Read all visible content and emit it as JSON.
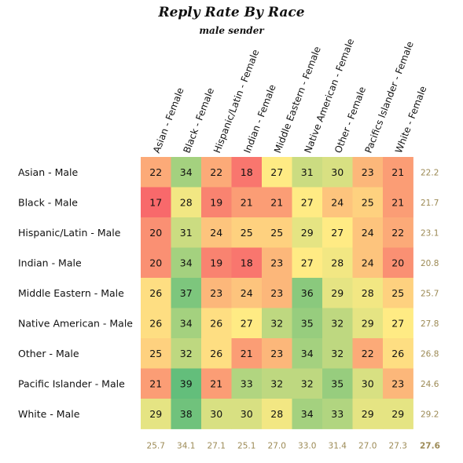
{
  "chart_data": {
    "type": "heatmap",
    "title": "Reply Rate By Race",
    "subtitle": "male sender",
    "columns": [
      "Asian - Female",
      "Black - Female",
      "Hispanic/Latin - Female",
      "Indian - Female",
      "Middle Eastern - Female",
      "Native American - Female",
      "Other - Female",
      "Pacifics lslander - Female",
      "White - Female"
    ],
    "rows": [
      "Asian - Male",
      "Black - Male",
      "Hispanic/Latin - Male",
      "Indian - Male",
      "Middle Eastern - Male",
      "Native American - Male",
      "Other - Male",
      "Pacific Islander - Male",
      "White - Male"
    ],
    "values": [
      [
        22,
        34,
        22,
        18,
        27,
        31,
        30,
        23,
        21
      ],
      [
        17,
        28,
        19,
        21,
        21,
        27,
        24,
        25,
        21
      ],
      [
        20,
        31,
        24,
        25,
        25,
        29,
        27,
        24,
        22
      ],
      [
        20,
        34,
        19,
        18,
        23,
        27,
        28,
        24,
        20
      ],
      [
        26,
        37,
        23,
        24,
        23,
        36,
        29,
        28,
        25
      ],
      [
        26,
        34,
        26,
        27,
        32,
        35,
        32,
        29,
        27
      ],
      [
        25,
        32,
        26,
        21,
        23,
        34,
        32,
        22,
        26
      ],
      [
        21,
        39,
        21,
        33,
        32,
        32,
        35,
        30,
        23
      ],
      [
        29,
        38,
        30,
        30,
        28,
        34,
        33,
        29,
        29
      ]
    ],
    "row_averages": [
      "22.2",
      "21.7",
      "23.1",
      "20.8",
      "25.7",
      "27.8",
      "26.8",
      "24.6",
      "29.2"
    ],
    "column_averages": [
      "25.7",
      "34.1",
      "27.1",
      "25.1",
      "27.0",
      "33.0",
      "31.4",
      "27.0",
      "27.3"
    ],
    "overall_average": "27.6",
    "color_scale": {
      "low": "#f8696b",
      "mid": "#ffeb84",
      "high": "#63be7b"
    },
    "summary_color": "#9c8a55"
  }
}
